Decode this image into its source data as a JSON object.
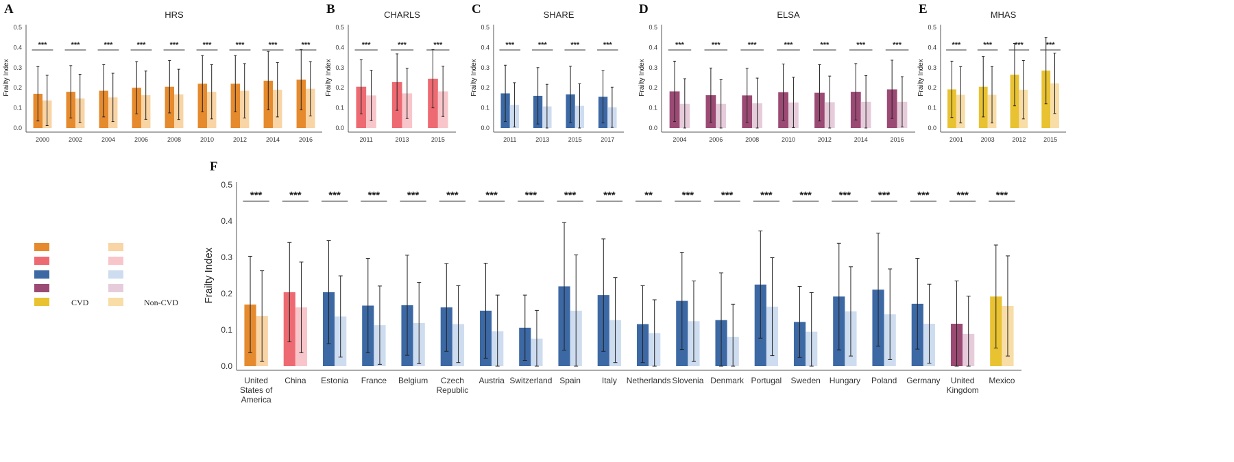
{
  "figure": {
    "legend": {
      "cvd_label": "CVD",
      "noncvd_label": "Non-CVD"
    }
  },
  "colors": {
    "HRS": {
      "cvd": "#E68A2E",
      "noncvd": "#F9D4A4"
    },
    "CHARLS": {
      "cvd": "#EE6A72",
      "noncvd": "#F8C6CA"
    },
    "SHARE": {
      "cvd": "#3C68A4",
      "noncvd": "#CEDCF0"
    },
    "ELSA": {
      "cvd": "#9B4A74",
      "noncvd": "#E6CCDA"
    },
    "MHAS": {
      "cvd": "#E8C231",
      "noncvd": "#F8DDA7"
    }
  },
  "chart_data": [
    {
      "type": "bar",
      "panel": "A",
      "title": "HRS",
      "cohort": "HRS",
      "ylabel": "Frailty Index",
      "ylim": [
        0,
        0.5
      ],
      "yticks": [
        "0.0",
        "0.1",
        "0.2",
        "0.3",
        "0.4",
        "0.5"
      ],
      "categories": [
        "2000",
        "2002",
        "2004",
        "2006",
        "2008",
        "2010",
        "2012",
        "2014",
        "2016"
      ],
      "series": [
        {
          "name": "CVD",
          "values": [
            0.17,
            0.18,
            0.185,
            0.2,
            0.205,
            0.22,
            0.22,
            0.235,
            0.24
          ],
          "err": [
            0.135,
            0.13,
            0.13,
            0.13,
            0.13,
            0.14,
            0.14,
            0.145,
            0.15
          ]
        },
        {
          "name": "Non-CVD",
          "values": [
            0.137,
            0.147,
            0.152,
            0.163,
            0.167,
            0.18,
            0.185,
            0.19,
            0.195
          ],
          "err": [
            0.125,
            0.12,
            0.12,
            0.12,
            0.125,
            0.135,
            0.135,
            0.135,
            0.135
          ]
        }
      ],
      "significance": [
        "***",
        "***",
        "***",
        "***",
        "***",
        "***",
        "***",
        "***",
        "***"
      ]
    },
    {
      "type": "bar",
      "panel": "B",
      "title": "CHARLS",
      "cohort": "CHARLS",
      "ylabel": "Frailty Index",
      "ylim": [
        0,
        0.5
      ],
      "yticks": [
        "0.0",
        "0.1",
        "0.2",
        "0.3",
        "0.4",
        "0.5"
      ],
      "categories": [
        "2011",
        "2013",
        "2015"
      ],
      "series": [
        {
          "name": "CVD",
          "values": [
            0.205,
            0.228,
            0.245
          ],
          "err": [
            0.135,
            0.14,
            0.145
          ]
        },
        {
          "name": "Non-CVD",
          "values": [
            0.162,
            0.172,
            0.182
          ],
          "err": [
            0.125,
            0.125,
            0.125
          ]
        }
      ],
      "significance": [
        "***",
        "***",
        "***"
      ]
    },
    {
      "type": "bar",
      "panel": "C",
      "title": "SHARE",
      "cohort": "SHARE",
      "ylabel": "Frailty Index",
      "ylim": [
        0,
        0.5
      ],
      "yticks": [
        "0.0",
        "0.1",
        "0.2",
        "0.3",
        "0.4",
        "0.5"
      ],
      "categories": [
        "2011",
        "2013",
        "2015",
        "2017"
      ],
      "series": [
        {
          "name": "CVD",
          "values": [
            0.172,
            0.16,
            0.167,
            0.155
          ],
          "err": [
            0.14,
            0.14,
            0.14,
            0.13
          ]
        },
        {
          "name": "Non-CVD",
          "values": [
            0.115,
            0.107,
            0.11,
            0.103
          ],
          "err": [
            0.11,
            0.11,
            0.11,
            0.1
          ]
        }
      ],
      "significance": [
        "***",
        "***",
        "***",
        "***"
      ]
    },
    {
      "type": "bar",
      "panel": "D",
      "title": "ELSA",
      "cohort": "ELSA",
      "ylabel": "Frailty Index",
      "ylim": [
        0,
        0.5
      ],
      "yticks": [
        "0.0",
        "0.1",
        "0.2",
        "0.3",
        "0.4",
        "0.5"
      ],
      "categories": [
        "2004",
        "2006",
        "2008",
        "2010",
        "2012",
        "2014",
        "2016"
      ],
      "series": [
        {
          "name": "CVD",
          "values": [
            0.182,
            0.163,
            0.162,
            0.178,
            0.175,
            0.18,
            0.192
          ],
          "err": [
            0.15,
            0.135,
            0.135,
            0.14,
            0.14,
            0.14,
            0.145
          ]
        },
        {
          "name": "Non-CVD",
          "values": [
            0.12,
            0.12,
            0.123,
            0.127,
            0.128,
            0.13,
            0.13
          ],
          "err": [
            0.125,
            0.12,
            0.125,
            0.125,
            0.13,
            0.13,
            0.125
          ]
        }
      ],
      "significance": [
        "***",
        "***",
        "***",
        "***",
        "***",
        "***",
        "***"
      ]
    },
    {
      "type": "bar",
      "panel": "E",
      "title": "MHAS",
      "cohort": "MHAS",
      "ylabel": "Frailty Index",
      "ylim": [
        0,
        0.5
      ],
      "yticks": [
        "0.0",
        "0.1",
        "0.2",
        "0.3",
        "0.4",
        "0.5"
      ],
      "categories": [
        "2001",
        "2003",
        "2012",
        "2015"
      ],
      "series": [
        {
          "name": "CVD",
          "values": [
            0.192,
            0.205,
            0.265,
            0.285
          ],
          "err": [
            0.14,
            0.15,
            0.155,
            0.165
          ]
        },
        {
          "name": "Non-CVD",
          "values": [
            0.165,
            0.165,
            0.19,
            0.222
          ],
          "err": [
            0.14,
            0.14,
            0.145,
            0.15
          ]
        }
      ],
      "significance": [
        "***",
        "***",
        "***",
        "***"
      ]
    },
    {
      "type": "bar",
      "panel": "F",
      "title": "",
      "ylabel": "Frailty Index",
      "ylim": [
        0,
        0.5
      ],
      "yticks": [
        "0.0",
        "0.1",
        "0.2",
        "0.3",
        "0.4",
        "0.5"
      ],
      "categories": [
        "United States of America",
        "China",
        "Estonia",
        "France",
        "Belgium",
        "Czech Republic",
        "Austria",
        "Switzerland",
        "Spain",
        "Italy",
        "Netherlands",
        "Slovenia",
        "Denmark",
        "Portugal",
        "Sweden",
        "Hungary",
        "Poland",
        "Germany",
        "United Kingdom",
        "Mexico"
      ],
      "category_lines": [
        [
          "United",
          "States of",
          "America"
        ],
        [
          "China"
        ],
        [
          "Estonia"
        ],
        [
          "France"
        ],
        [
          "Belgium"
        ],
        [
          "Czech",
          "Republic"
        ],
        [
          "Austria"
        ],
        [
          "Switzerland"
        ],
        [
          "Spain"
        ],
        [
          "Italy"
        ],
        [
          "Netherlands"
        ],
        [
          "Slovenia"
        ],
        [
          "Denmark"
        ],
        [
          "Portugal"
        ],
        [
          "Sweden"
        ],
        [
          "Hungary"
        ],
        [
          "Poland"
        ],
        [
          "Germany"
        ],
        [
          "United",
          "Kingdom"
        ],
        [
          "Mexico"
        ]
      ],
      "cohorts": [
        "HRS",
        "CHARLS",
        "SHARE",
        "SHARE",
        "SHARE",
        "SHARE",
        "SHARE",
        "SHARE",
        "SHARE",
        "SHARE",
        "SHARE",
        "SHARE",
        "SHARE",
        "SHARE",
        "SHARE",
        "SHARE",
        "SHARE",
        "SHARE",
        "ELSA",
        "MHAS"
      ],
      "series": [
        {
          "name": "CVD",
          "values": [
            0.17,
            0.204,
            0.204,
            0.167,
            0.168,
            0.162,
            0.153,
            0.106,
            0.22,
            0.196,
            0.116,
            0.18,
            0.127,
            0.225,
            0.122,
            0.192,
            0.211,
            0.172,
            0.117,
            0.192
          ],
          "err": [
            0.133,
            0.137,
            0.142,
            0.13,
            0.138,
            0.121,
            0.131,
            0.09,
            0.176,
            0.155,
            0.106,
            0.134,
            0.13,
            0.148,
            0.098,
            0.147,
            0.156,
            0.125,
            0.118,
            0.142
          ]
        },
        {
          "name": "Non-CVD",
          "values": [
            0.138,
            0.162,
            0.137,
            0.113,
            0.119,
            0.116,
            0.096,
            0.076,
            0.153,
            0.127,
            0.091,
            0.124,
            0.081,
            0.164,
            0.095,
            0.151,
            0.143,
            0.117,
            0.089,
            0.166
          ],
          "err": [
            0.125,
            0.125,
            0.112,
            0.108,
            0.112,
            0.106,
            0.1,
            0.078,
            0.154,
            0.117,
            0.092,
            0.111,
            0.09,
            0.135,
            0.108,
            0.123,
            0.125,
            0.109,
            0.104,
            0.138
          ]
        }
      ],
      "significance": [
        "***",
        "***",
        "***",
        "***",
        "***",
        "***",
        "***",
        "***",
        "***",
        "***",
        "**",
        "***",
        "***",
        "***",
        "***",
        "***",
        "***",
        "***",
        "***",
        "***"
      ]
    }
  ]
}
